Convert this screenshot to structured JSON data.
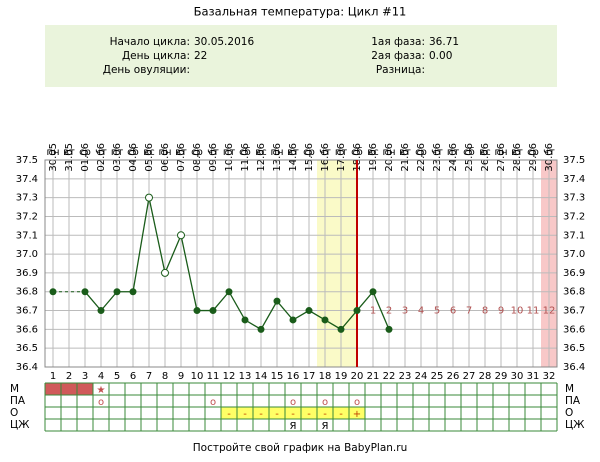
{
  "chart_data": {
    "type": "line",
    "title": "Базальная температура: Цикл #11",
    "info_left": [
      {
        "label": "Начало цикла:",
        "value": "30.05.2016"
      },
      {
        "label": "День цикла:",
        "value": "22"
      },
      {
        "label": "День овуляции:",
        "value": ""
      }
    ],
    "info_right": [
      {
        "label": "1ая фаза:",
        "value": "36.71"
      },
      {
        "label": "2ая фаза:",
        "value": "0.00"
      },
      {
        "label": "Разница:",
        "value": ""
      }
    ],
    "categories": [
      "30.05",
      "31.05",
      "01.06",
      "02.06",
      "03.06",
      "04.06",
      "05.06",
      "06.06",
      "07.06",
      "08.06",
      "09.06",
      "10.06",
      "11.06",
      "12.06",
      "13.06",
      "14.06",
      "15.06",
      "16.06",
      "17.06",
      "18.06",
      "19.06",
      "20.06",
      "21.06",
      "22.06",
      "23.06",
      "24.06",
      "25.06",
      "26.06",
      "27.06",
      "28.06",
      "29.06",
      "30.06"
    ],
    "weekdays": [
      "пн",
      "вт",
      "ср",
      "чт",
      "пт",
      "сб",
      "вс",
      "пн",
      "вт",
      "ср",
      "чт",
      "пт",
      "сб",
      "вс",
      "пн",
      "вт",
      "ср",
      "чт",
      "пт",
      "сб",
      "вс",
      "пн",
      "вт",
      "ср",
      "чт",
      "пт",
      "сб",
      "вс",
      "пн",
      "вт",
      "ср",
      "чт"
    ],
    "days": [
      1,
      2,
      3,
      4,
      5,
      6,
      7,
      8,
      9,
      10,
      11,
      12,
      13,
      14,
      15,
      16,
      17,
      18,
      19,
      20,
      21,
      22,
      23,
      24,
      25,
      26,
      27,
      28,
      29,
      30,
      31,
      32
    ],
    "phase_day_labels": [
      null,
      null,
      null,
      null,
      null,
      null,
      null,
      null,
      null,
      null,
      null,
      null,
      null,
      null,
      null,
      null,
      null,
      null,
      null,
      null,
      1,
      2,
      3,
      4,
      5,
      6,
      7,
      8,
      9,
      10,
      11,
      12
    ],
    "values": [
      36.8,
      null,
      36.8,
      36.7,
      36.8,
      36.8,
      37.3,
      36.9,
      37.1,
      36.7,
      36.7,
      36.8,
      36.65,
      36.6,
      36.75,
      36.65,
      36.7,
      36.65,
      36.6,
      36.7,
      36.8,
      36.6,
      null,
      null,
      null,
      null,
      null,
      null,
      null,
      null,
      null,
      null
    ],
    "color": "#1a5c1a",
    "excluded_days": [
      7,
      8,
      9
    ],
    "fertile_band": [
      18,
      20
    ],
    "ovulation_line_day": 20,
    "highlight_day": 32,
    "ylim": [
      36.4,
      37.5
    ],
    "yticks": [
      36.4,
      36.5,
      36.6,
      36.7,
      36.8,
      36.9,
      {
        "value": 37,
        "label": "37.0"
      },
      37.1,
      37.2,
      37.3,
      37.4,
      37.5
    ],
    "grid": true,
    "table": [
      {
        "label": "М",
        "cells": [
          null,
          null,
          null,
          "★",
          null,
          null,
          null,
          null,
          null,
          null,
          null,
          null,
          null,
          null,
          null,
          null,
          null,
          null,
          null,
          null,
          null,
          null,
          null,
          null,
          null,
          null,
          null,
          null,
          null,
          null,
          null,
          null
        ],
        "fill_days": [
          1,
          3
        ],
        "fill_color": "#d05a5a"
      },
      {
        "label": "ПА",
        "cells": [
          null,
          null,
          null,
          "о",
          null,
          null,
          null,
          null,
          null,
          null,
          "о",
          null,
          null,
          null,
          null,
          "о",
          null,
          "о",
          null,
          "о",
          null,
          null,
          null,
          null,
          null,
          null,
          null,
          null,
          null,
          null,
          null,
          null
        ]
      },
      {
        "label": "О",
        "cells": [
          null,
          null,
          null,
          null,
          null,
          null,
          null,
          null,
          null,
          null,
          null,
          "-",
          "-",
          "-",
          "-",
          "-",
          "-",
          "-",
          "-",
          "+",
          null,
          null,
          null,
          null,
          null,
          null,
          null,
          null,
          null,
          null,
          null,
          null
        ],
        "fill_days": [
          12,
          20
        ],
        "fill_color": "#ffff66"
      },
      {
        "label": "ЦЖ",
        "cells": [
          null,
          null,
          null,
          null,
          null,
          null,
          null,
          null,
          null,
          null,
          null,
          null,
          null,
          null,
          null,
          "Я",
          null,
          "Я",
          null,
          null,
          null,
          null,
          null,
          null,
          null,
          null,
          null,
          null,
          null,
          null,
          null,
          null
        ]
      }
    ],
    "footer": "Постройте свой график на BabyPlan.ru"
  }
}
